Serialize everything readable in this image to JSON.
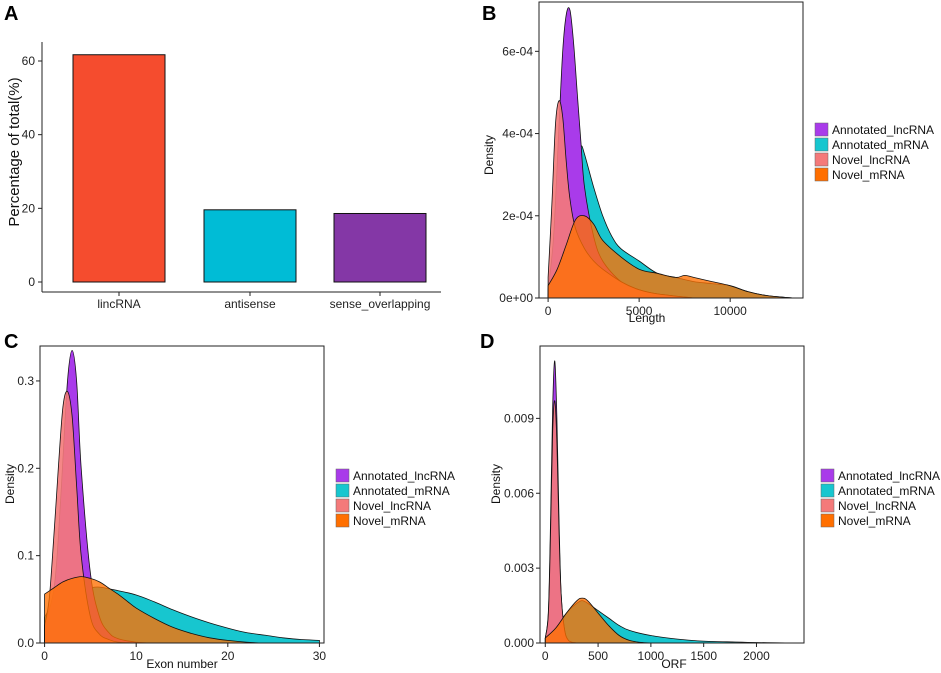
{
  "colors": {
    "lincRNA": "#f54c2e",
    "antisense": "#00bcd6",
    "sense_overlapping": "#8437a6",
    "Annotated_lncRNA": "#a93bea",
    "Annotated_mRNA": "#17c6cf",
    "Novel_lncRNA": "#f47a7a",
    "Novel_mRNA": "#ff6f00"
  },
  "chart_data": [
    {
      "panel": "A",
      "type": "bar",
      "title": "",
      "xlabel": "",
      "ylabel": "Percentage of total(%)",
      "categories": [
        "lincRNA",
        "antisense",
        "sense_overlapping"
      ],
      "values": [
        61.7,
        19.6,
        18.6
      ],
      "ylim": [
        0,
        65
      ],
      "yticks": [
        0,
        20,
        40,
        60
      ],
      "ytick_labels": [
        "0",
        "20",
        "40",
        "60"
      ]
    },
    {
      "panel": "B",
      "type": "area",
      "xlabel": "Length",
      "ylabel": "Density",
      "xlim": [
        -500,
        14000
      ],
      "ylim": [
        0,
        0.00072
      ],
      "xticks": [
        0,
        5000,
        10000
      ],
      "xtick_labels": [
        "0",
        "5000",
        "10000"
      ],
      "yticks": [
        0,
        0.0002,
        0.0004,
        0.0006
      ],
      "ytick_labels": [
        "0e+00",
        "2e-04",
        "4e-04",
        "6e-04"
      ],
      "legend": [
        "Annotated_lncRNA",
        "Annotated_mRNA",
        "Novel_lncRNA",
        "Novel_mRNA"
      ],
      "series": [
        {
          "name": "Annotated_lncRNA",
          "x": [
            0,
            300,
            600,
            800,
            1000,
            1200,
            1400,
            1600,
            1800,
            2000,
            2500,
            3000,
            4000,
            5000,
            6000,
            8000
          ],
          "values": [
            2e-05,
            0.00015,
            0.00042,
            0.0006,
            0.00069,
            0.0007,
            0.00062,
            0.0005,
            0.00038,
            0.00027,
            0.00015,
            9e-05,
            4e-05,
            2e-05,
            1e-05,
            0
          ]
        },
        {
          "name": "Annotated_mRNA",
          "x": [
            0,
            500,
            1000,
            1500,
            1800,
            2000,
            2500,
            3000,
            3500,
            4000,
            5000,
            6000,
            7000,
            8000,
            9000,
            10000,
            11000,
            12000,
            13500
          ],
          "values": [
            1e-05,
            5e-05,
            0.00018,
            0.00034,
            0.00037,
            0.00035,
            0.00027,
            0.0002,
            0.00015,
            0.00012,
            9e-05,
            6e-05,
            5e-05,
            4e-05,
            3.5e-05,
            3e-05,
            1.5e-05,
            6e-06,
            0
          ]
        },
        {
          "name": "Novel_lncRNA",
          "x": [
            0,
            200,
            400,
            600,
            800,
            1000,
            1200,
            1500,
            2000,
            2500,
            3000,
            4000,
            5000,
            6000,
            8000
          ],
          "values": [
            5e-05,
            0.00022,
            0.00042,
            0.00048,
            0.00044,
            0.00033,
            0.00024,
            0.00017,
            0.00012,
            9e-05,
            7e-05,
            4e-05,
            2e-05,
            1e-05,
            0
          ]
        },
        {
          "name": "Novel_mRNA",
          "x": [
            0,
            500,
            1000,
            1500,
            2000,
            2500,
            3000,
            4000,
            5000,
            6000,
            7000,
            7500,
            8000,
            9000,
            10000,
            11000,
            12000,
            13500
          ],
          "values": [
            3e-05,
            7e-05,
            0.00013,
            0.00019,
            0.0002,
            0.00018,
            0.00014,
            0.0001,
            7e-05,
            6e-05,
            5e-05,
            5.5e-05,
            5e-05,
            4e-05,
            3e-05,
            1.5e-05,
            6e-06,
            0
          ]
        }
      ]
    },
    {
      "panel": "C",
      "type": "area",
      "xlabel": "Exon number",
      "ylabel": "Density",
      "xlim": [
        -0.5,
        30.5
      ],
      "ylim": [
        0,
        0.34
      ],
      "xticks": [
        0,
        10,
        20,
        30
      ],
      "xtick_labels": [
        "0",
        "10",
        "20",
        "30"
      ],
      "yticks": [
        0,
        0.1,
        0.2,
        0.3
      ],
      "ytick_labels": [
        "0.0",
        "0.1",
        "0.2",
        "0.3"
      ],
      "legend": [
        "Annotated_lncRNA",
        "Annotated_mRNA",
        "Novel_lncRNA",
        "Novel_mRNA"
      ],
      "series": [
        {
          "name": "Annotated_lncRNA",
          "x": [
            0,
            1,
            1.5,
            2,
            2.5,
            3,
            3.5,
            4,
            5,
            6,
            7,
            8,
            10,
            12
          ],
          "values": [
            0.02,
            0.06,
            0.12,
            0.21,
            0.3,
            0.335,
            0.3,
            0.2,
            0.08,
            0.03,
            0.012,
            0.005,
            0.001,
            0
          ]
        },
        {
          "name": "Annotated_mRNA",
          "x": [
            0,
            1,
            2,
            3,
            4,
            5,
            6,
            8,
            10,
            12,
            14,
            16,
            18,
            20,
            22,
            24,
            26,
            28,
            30
          ],
          "values": [
            0.03,
            0.045,
            0.05,
            0.055,
            0.06,
            0.063,
            0.064,
            0.06,
            0.055,
            0.047,
            0.038,
            0.03,
            0.023,
            0.017,
            0.012,
            0.009,
            0.006,
            0.004,
            0.003
          ]
        },
        {
          "name": "Novel_lncRNA",
          "x": [
            0,
            0.5,
            1,
            1.5,
            2,
            2.5,
            3,
            3.5,
            4,
            5,
            6,
            7,
            8,
            10
          ],
          "values": [
            0.02,
            0.05,
            0.12,
            0.2,
            0.27,
            0.288,
            0.26,
            0.18,
            0.1,
            0.03,
            0.01,
            0.004,
            0.001,
            0
          ]
        },
        {
          "name": "Novel_mRNA",
          "x": [
            0,
            1,
            2,
            3,
            4,
            5,
            6,
            7,
            8,
            9,
            10,
            12,
            14,
            16,
            18,
            20,
            22,
            24
          ],
          "values": [
            0.056,
            0.063,
            0.07,
            0.074,
            0.076,
            0.074,
            0.07,
            0.063,
            0.056,
            0.048,
            0.04,
            0.028,
            0.018,
            0.011,
            0.006,
            0.003,
            0.001,
            0
          ]
        }
      ]
    },
    {
      "panel": "D",
      "type": "area",
      "xlabel": "ORF",
      "ylabel": "Density",
      "xlim": [
        -50,
        2450
      ],
      "ylim": [
        0,
        0.0119
      ],
      "xticks": [
        0,
        500,
        1000,
        1500,
        2000
      ],
      "xtick_labels": [
        "0",
        "500",
        "1000",
        "1500",
        "2000"
      ],
      "yticks": [
        0,
        0.003,
        0.006,
        0.009
      ],
      "ytick_labels": [
        "0.000",
        "0.003",
        "0.006",
        "0.009"
      ],
      "legend": [
        "Annotated_lncRNA",
        "Annotated_mRNA",
        "Novel_lncRNA",
        "Novel_mRNA"
      ],
      "series": [
        {
          "name": "Annotated_lncRNA",
          "x": [
            0,
            30,
            50,
            70,
            90,
            110,
            130,
            150,
            180,
            220,
            300
          ],
          "values": [
            0.0002,
            0.0013,
            0.005,
            0.0095,
            0.0113,
            0.009,
            0.005,
            0.002,
            0.0006,
            0.0001,
            0
          ]
        },
        {
          "name": "Annotated_mRNA",
          "x": [
            0,
            100,
            200,
            300,
            350,
            400,
            500,
            600,
            700,
            800,
            1000,
            1200,
            1400,
            1600,
            1800,
            2000,
            2200,
            2400
          ],
          "values": [
            0.0002,
            0.0006,
            0.0012,
            0.0016,
            0.0017,
            0.0016,
            0.0013,
            0.001,
            0.0007,
            0.0005,
            0.0003,
            0.00018,
            0.0001,
            6e-05,
            4e-05,
            2e-05,
            1e-05,
            0
          ]
        },
        {
          "name": "Novel_lncRNA",
          "x": [
            0,
            30,
            50,
            70,
            90,
            110,
            130,
            150,
            180,
            220,
            300
          ],
          "values": [
            0.0002,
            0.0012,
            0.0045,
            0.0085,
            0.0097,
            0.008,
            0.0045,
            0.002,
            0.0006,
            0.0001,
            0
          ]
        },
        {
          "name": "Novel_mRNA",
          "x": [
            0,
            100,
            200,
            300,
            350,
            400,
            500,
            600,
            700,
            800,
            900,
            1000
          ],
          "values": [
            0.0002,
            0.0006,
            0.0012,
            0.0017,
            0.0018,
            0.0017,
            0.0012,
            0.0007,
            0.0003,
            0.0001,
            3e-05,
            0
          ]
        }
      ]
    }
  ]
}
